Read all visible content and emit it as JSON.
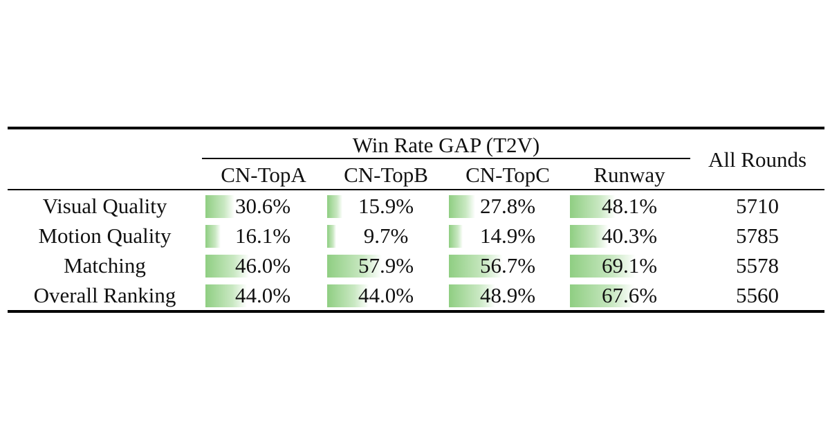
{
  "chart_data": {
    "type": "table",
    "group_header": "Win Rate GAP (T2V)",
    "columns": [
      "CN-TopA",
      "CN-TopB",
      "CN-TopC",
      "Runway"
    ],
    "extra_column": "All Rounds",
    "rows": [
      {
        "label": "Visual Quality",
        "values": [
          "30.6%",
          "15.9%",
          "27.8%",
          "48.1%"
        ],
        "rounds": "5710"
      },
      {
        "label": "Motion Quality",
        "values": [
          "16.1%",
          "9.7%",
          "14.9%",
          "40.3%"
        ],
        "rounds": "5785"
      },
      {
        "label": "Matching",
        "values": [
          "46.0%",
          "57.9%",
          "56.7%",
          "69.1%"
        ],
        "rounds": "5578"
      },
      {
        "label": "Overall Ranking",
        "values": [
          "44.0%",
          "44.0%",
          "48.9%",
          "67.6%"
        ],
        "rounds": "5560"
      }
    ],
    "numeric_values": [
      [
        30.6,
        15.9,
        27.8,
        48.1
      ],
      [
        16.1,
        9.7,
        14.9,
        40.3
      ],
      [
        46.0,
        57.9,
        56.7,
        69.1
      ],
      [
        44.0,
        44.0,
        48.9,
        67.6
      ]
    ],
    "bar_color": "#8fce82"
  }
}
